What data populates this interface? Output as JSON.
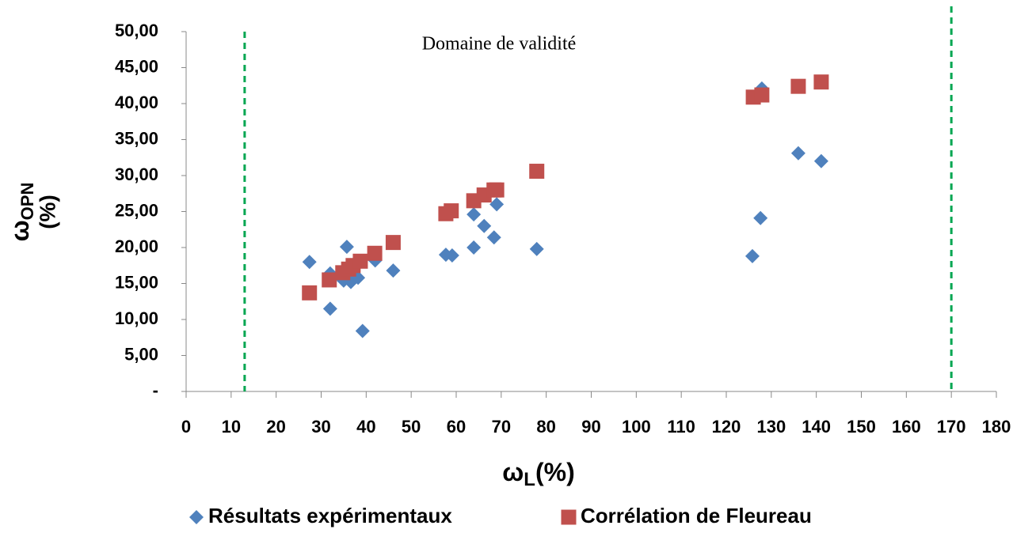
{
  "chart_data": {
    "type": "scatter",
    "annotation": "Domaine de validité",
    "x_label": {
      "symbol": "ω",
      "subscript": "L",
      "unit": "(%)"
    },
    "y_label": {
      "symbol": "ω",
      "subscript": "OPN",
      "unit": "(%)"
    },
    "xlim": [
      0,
      180
    ],
    "xticks": [
      0,
      10,
      20,
      30,
      40,
      50,
      60,
      70,
      80,
      90,
      100,
      110,
      120,
      130,
      140,
      150,
      160,
      170,
      180
    ],
    "ylim": [
      0,
      50
    ],
    "yticks": [
      {
        "value": 0,
        "label": "-"
      },
      {
        "value": 5,
        "label": "5,00"
      },
      {
        "value": 10,
        "label": "10,00"
      },
      {
        "value": 15,
        "label": "15,00"
      },
      {
        "value": 20,
        "label": "20,00"
      },
      {
        "value": 25,
        "label": "25,00"
      },
      {
        "value": 30,
        "label": "30,00"
      },
      {
        "value": 35,
        "label": "35,00"
      },
      {
        "value": 40,
        "label": "40,00"
      },
      {
        "value": 45,
        "label": "45,00"
      },
      {
        "value": 50,
        "label": "50,00"
      }
    ],
    "validity_lines": [
      13,
      170
    ],
    "validity_color": "#00a651",
    "series": [
      {
        "name": "Résultats expérimentaux",
        "marker": "diamond",
        "color": "#4f81bd",
        "x": [
          27.4,
          32,
          32,
          35.7,
          35,
          36.6,
          38.2,
          39.2,
          42,
          46,
          57.7,
          59.1,
          63.9,
          63.9,
          66.2,
          68.4,
          69,
          77.9,
          125.8,
          127.6,
          127.9,
          136,
          141.1
        ],
        "values": [
          18.0,
          16.4,
          11.5,
          20.1,
          15.4,
          15.2,
          15.8,
          8.4,
          18.2,
          16.8,
          19.0,
          18.9,
          24.6,
          20.0,
          23.0,
          21.4,
          26.0,
          19.8,
          18.8,
          24.1,
          42.1,
          33.1,
          32.0
        ]
      },
      {
        "name": "Corrélation de Fleureau",
        "marker": "square",
        "color": "#c0504d",
        "x": [
          27.4,
          31.8,
          34.8,
          36.1,
          37.1,
          38.7,
          41.9,
          46,
          57.7,
          58.9,
          63.9,
          66.2,
          68.4,
          69,
          77.9,
          126,
          127.9,
          136,
          141.1
        ],
        "values": [
          13.7,
          15.5,
          16.5,
          17.0,
          17.5,
          18.1,
          19.2,
          20.7,
          24.7,
          25.1,
          26.5,
          27.3,
          28.0,
          28.0,
          30.6,
          40.9,
          41.2,
          42.4,
          43.0
        ]
      }
    ]
  }
}
